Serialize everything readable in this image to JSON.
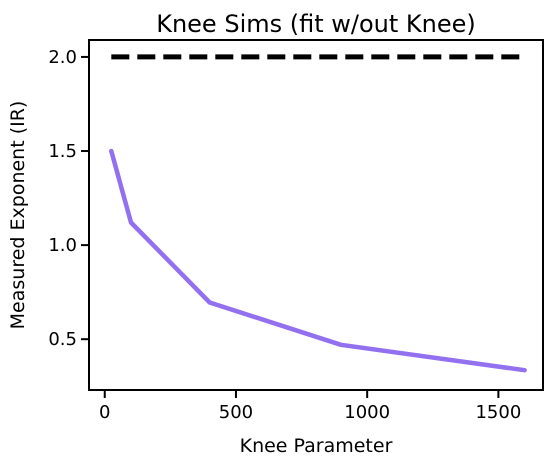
{
  "chart_data": {
    "type": "line",
    "title": "Knee Sims (fit w/out Knee)",
    "xlabel": "Knee Parameter",
    "ylabel": "Measured Exponent (IR)",
    "xlim": [
      -60,
      1670
    ],
    "ylim": [
      0.23,
      2.09
    ],
    "xticks": [
      0,
      500,
      1000,
      1500
    ],
    "xtick_labels": [
      "0",
      "500",
      "1000",
      "1500"
    ],
    "yticks": [
      0.5,
      1.0,
      1.5,
      2.0
    ],
    "ytick_labels": [
      "0.5",
      "1.0",
      "1.5",
      "2.0"
    ],
    "grid": false,
    "series": [
      {
        "color": "#9370f0",
        "style": "solid",
        "x": [
          25,
          100,
          400,
          900,
          1600
        ],
        "y": [
          1.5,
          1.12,
          0.695,
          0.47,
          0.335
        ]
      },
      {
        "color": "#000000",
        "style": "dashed",
        "x": [
          25,
          1600
        ],
        "y": [
          2.0,
          2.0
        ]
      }
    ]
  }
}
